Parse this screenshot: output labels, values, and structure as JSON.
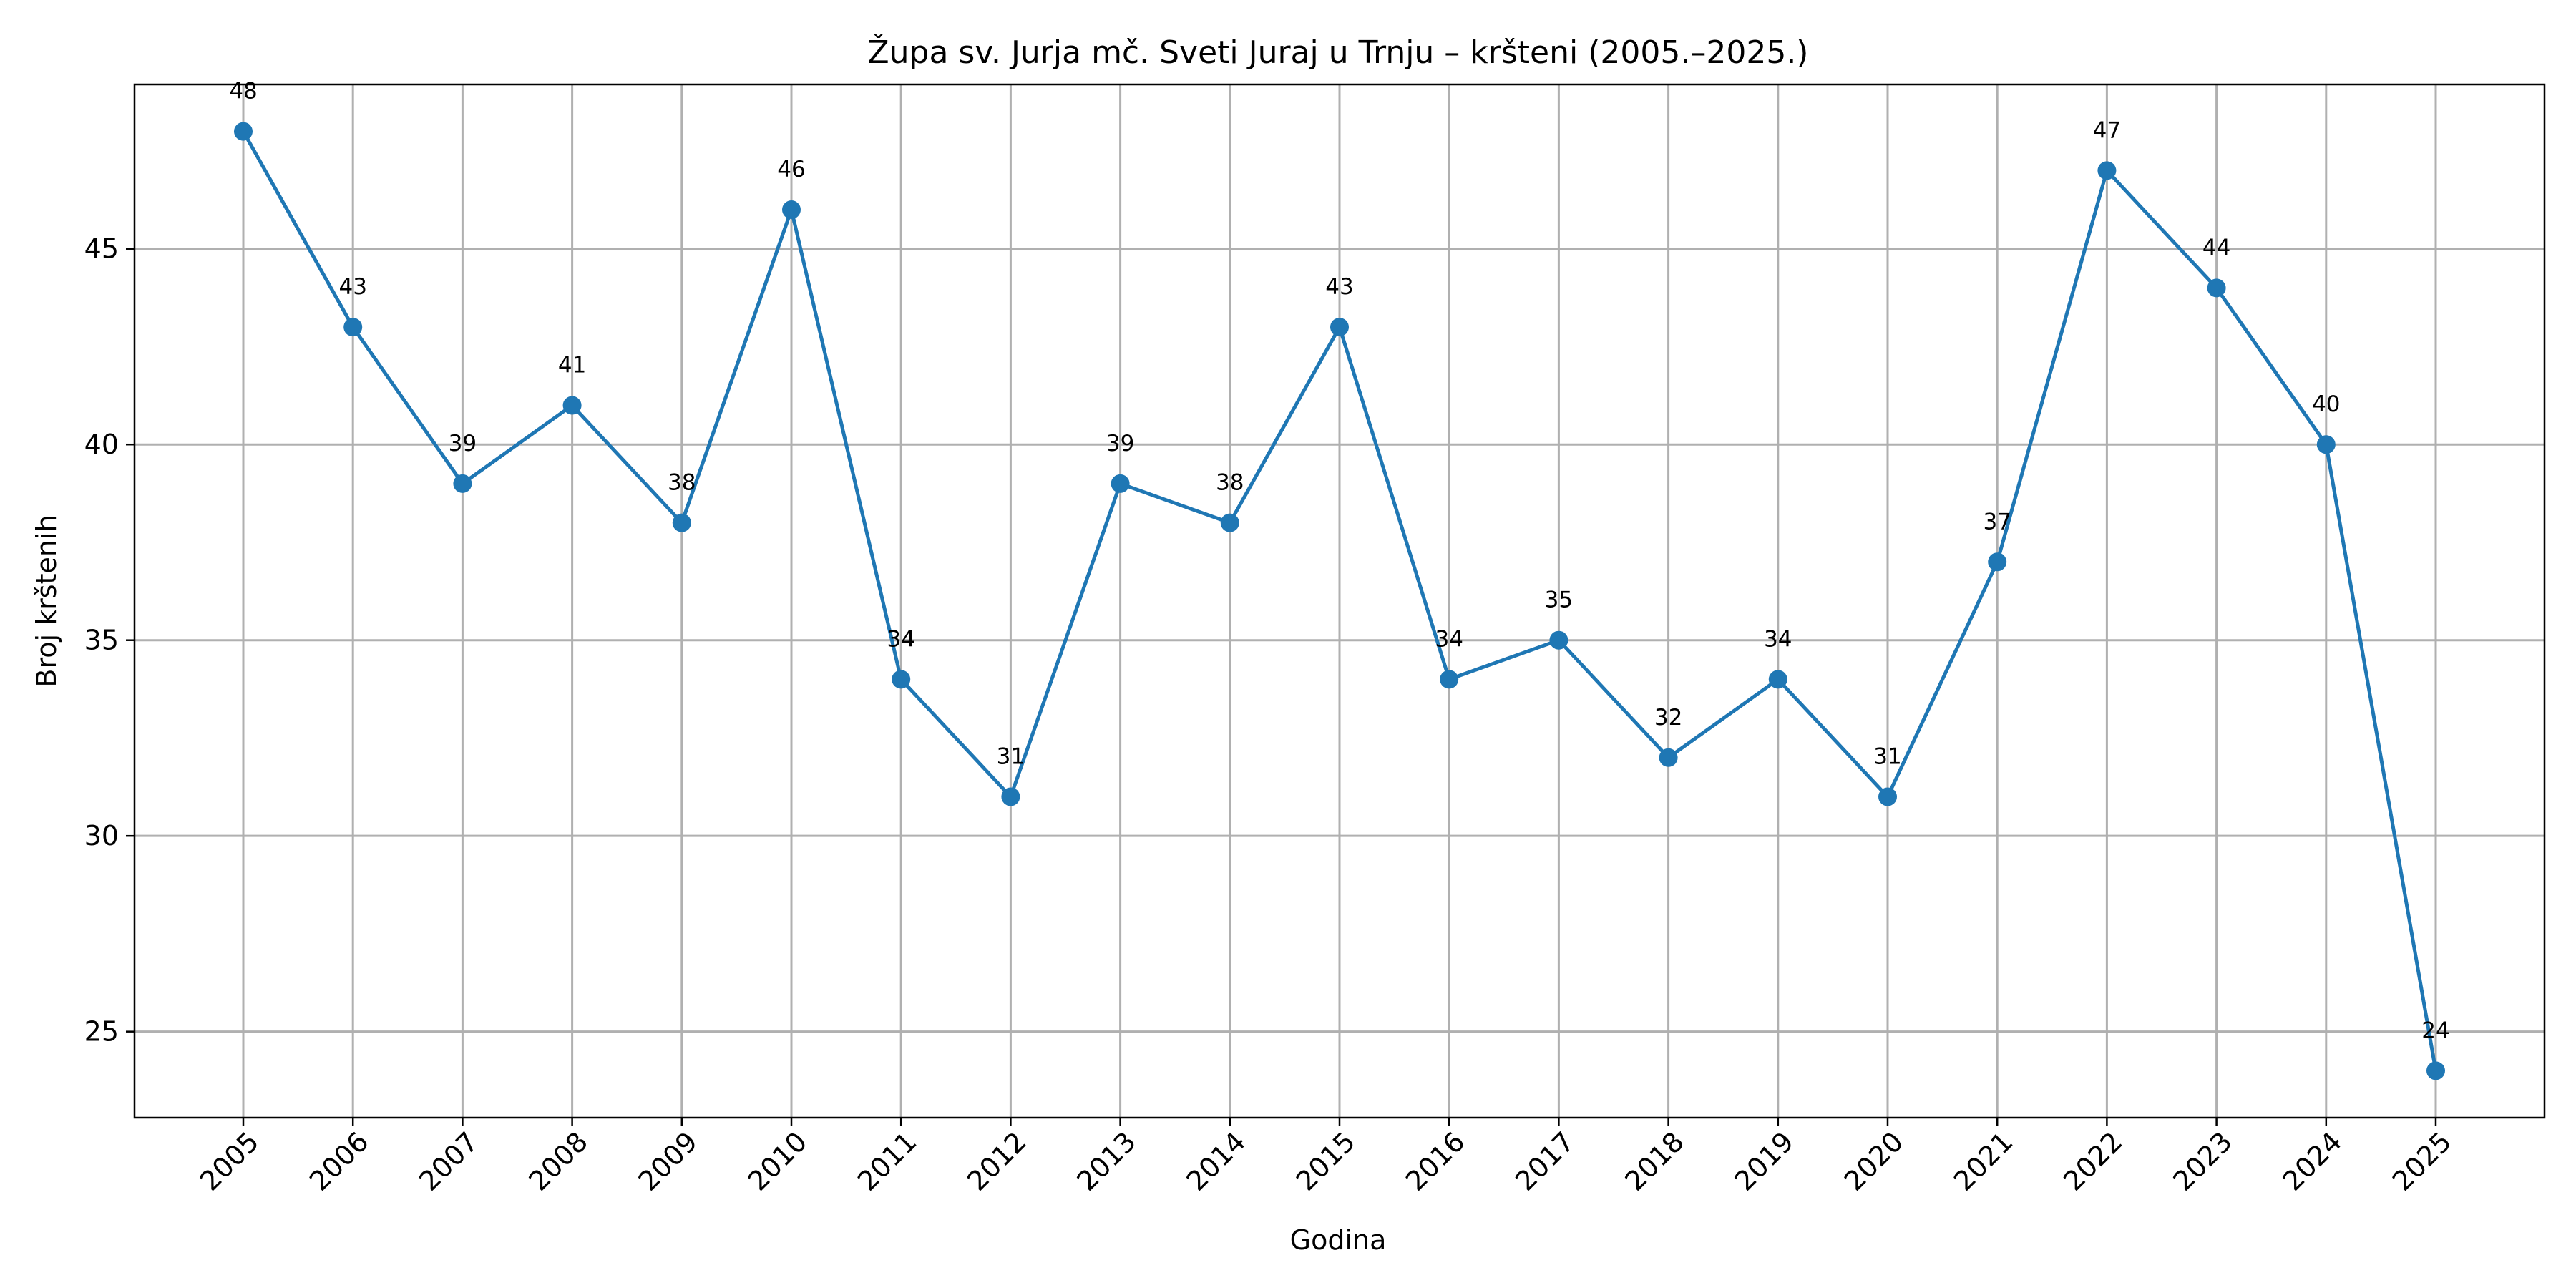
{
  "chart_data": {
    "type": "line",
    "title": "Župa sv. Jurja mč. Sveti Juraj u Trnju – kršteni (2005.–2025.)",
    "xlabel": "Godina",
    "ylabel": "Broj krštenih",
    "x": [
      "2005",
      "2006",
      "2007",
      "2008",
      "2009",
      "2010",
      "2011",
      "2012",
      "2013",
      "2014",
      "2015",
      "2016",
      "2017",
      "2018",
      "2019",
      "2020",
      "2021",
      "2022",
      "2023",
      "2024",
      "2025"
    ],
    "series": [
      {
        "values": [
          48,
          43,
          39,
          41,
          38,
          46,
          34,
          31,
          39,
          38,
          43,
          34,
          35,
          32,
          34,
          31,
          37,
          47,
          44,
          40,
          24
        ],
        "color": "#1f77b4",
        "marker": "circle"
      }
    ],
    "yticks": [
      "25",
      "30",
      "35",
      "40",
      "45"
    ],
    "ylim": [
      22.8,
      49.2
    ],
    "grid": true,
    "legend": "none"
  }
}
